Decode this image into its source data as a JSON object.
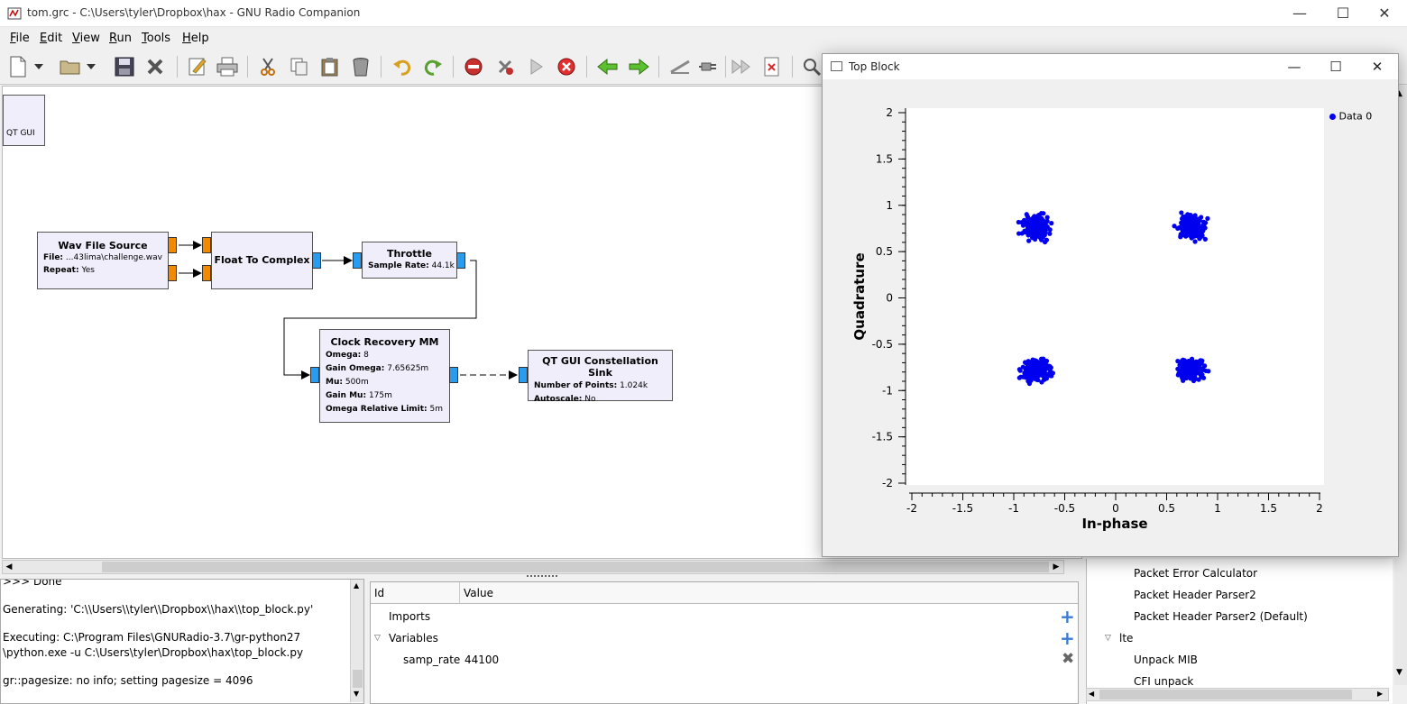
{
  "window": {
    "title": "tom.grc - C:\\Users\\tyler\\Dropbox\\hax - GNU Radio Companion",
    "minimize": "—",
    "maximize": "☐",
    "close": "✕"
  },
  "menu": [
    {
      "label": "File",
      "key": "F",
      "rest": "ile"
    },
    {
      "label": "Edit",
      "key": "E",
      "rest": "dit"
    },
    {
      "label": "View",
      "key": "V",
      "rest": "iew"
    },
    {
      "label": "Run",
      "key": "R",
      "rest": "un"
    },
    {
      "label": "Tools",
      "key": "T",
      "rest": "ools"
    },
    {
      "label": "Help",
      "key": "H",
      "rest": "elp"
    }
  ],
  "blocks": {
    "qtgui": {
      "label": "QT GUI"
    },
    "wav": {
      "title": "Wav File Source",
      "p1k": "File:",
      "p1v": "...43lima\\challenge.wav",
      "p2k": "Repeat:",
      "p2v": "Yes"
    },
    "f2c": {
      "title": "Float To Complex"
    },
    "throttle": {
      "title": "Throttle",
      "p1k": "Sample Rate:",
      "p1v": "44.1k"
    },
    "clock": {
      "title": "Clock Recovery MM",
      "params": [
        {
          "k": "Omega:",
          "v": "8"
        },
        {
          "k": "Gain Omega:",
          "v": "7.65625m"
        },
        {
          "k": "Mu:",
          "v": "500m"
        },
        {
          "k": "Gain Mu:",
          "v": "175m"
        },
        {
          "k": "Omega Relative Limit:",
          "v": "5m"
        }
      ]
    },
    "const": {
      "title": "QT GUI Constellation Sink",
      "p1k": "Number of Points:",
      "p1v": "1.024k",
      "p2k": "Autoscale:",
      "p2v": "No"
    }
  },
  "console": {
    "lines": [
      ">>> Done",
      "Generating: 'C:\\\\Users\\\\tyler\\\\Dropbox\\\\hax\\\\top_block.py'",
      "Executing: C:\\Program Files\\GNURadio-3.7\\gr-python27",
      "\\python.exe -u C:\\Users\\tyler\\Dropbox\\hax\\top_block.py",
      "gr::pagesize: no info; setting pagesize = 4096"
    ]
  },
  "variables": {
    "col_id": "Id",
    "col_value": "Value",
    "imports": "Imports",
    "variables": "Variables",
    "samp_rate_id": "samp_rate",
    "samp_rate_value": "44100"
  },
  "library": {
    "items": [
      "Packet Error Calculator",
      "Packet Header Parser2",
      "Packet Header Parser2 (Default)",
      "lte",
      "Unpack MIB",
      "CFI unpack"
    ]
  },
  "topblock": {
    "title": "Top Block",
    "minimize": "—",
    "maximize": "☐",
    "close": "✕"
  },
  "chart_data": {
    "type": "scatter",
    "title": "",
    "xlabel": "In-phase",
    "ylabel": "Quadrature",
    "xlim": [
      -2,
      2
    ],
    "ylim": [
      -2,
      2
    ],
    "xticks": [
      "-2",
      "-1.5",
      "-1",
      "-0.5",
      "0",
      "0.5",
      "1",
      "1.5",
      "2"
    ],
    "yticks": [
      "2",
      "1.5",
      "1",
      "0.5",
      "0",
      "-0.5",
      "-1",
      "-1.5",
      "-2"
    ],
    "legend_position": "top-right",
    "grid": false,
    "series": [
      {
        "name": "Data 0",
        "color": "#0000ee",
        "clusters": [
          {
            "cx": -0.78,
            "cy": 0.76,
            "spread": 0.13
          },
          {
            "cx": 0.74,
            "cy": 0.76,
            "spread": 0.13
          },
          {
            "cx": -0.78,
            "cy": -0.78,
            "spread": 0.13
          },
          {
            "cx": 0.74,
            "cy": -0.78,
            "spread": 0.13
          }
        ]
      }
    ]
  }
}
